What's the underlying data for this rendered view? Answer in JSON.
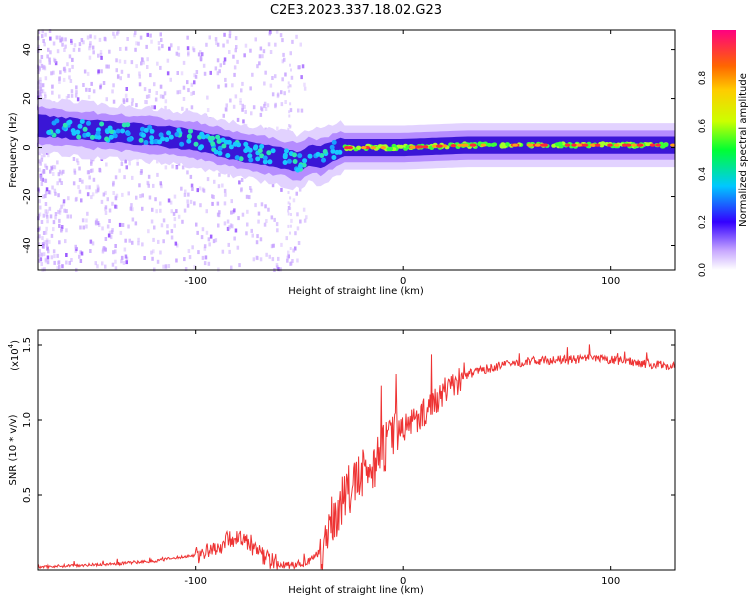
{
  "title": "C2E3.2023.337.18.02.G23",
  "chart_data": [
    {
      "type": "heatmap",
      "xlabel": "Height of straight line (km)",
      "ylabel": "Frequency (Hz)",
      "xlim": [
        -176,
        131
      ],
      "ylim": [
        -50,
        48
      ],
      "xticks": [
        -100,
        0,
        100
      ],
      "yticks": [
        -40,
        -20,
        0,
        20,
        40
      ],
      "grid": false,
      "ridge": {
        "x": [
          -176,
          -150,
          -120,
          -100,
          -80,
          -60,
          -50,
          -45,
          -40,
          -35,
          -30,
          0,
          30,
          60,
          90,
          131
        ],
        "frequency_hz": [
          9,
          7,
          5,
          3,
          -1,
          -4,
          -6,
          -3,
          -4,
          -2,
          0,
          0,
          1,
          1,
          1,
          1
        ]
      },
      "colorbar": {
        "label": "Normalized spectral amplitude",
        "range": [
          0.0,
          1.0
        ],
        "ticks": [
          "0.0",
          "0.2",
          "0.4",
          "0.6",
          "0.8"
        ]
      }
    },
    {
      "type": "line",
      "xlabel": "Height of straight line (km)",
      "ylabel": "SNR (10 * v/v)",
      "scale_label": "(x10",
      "scale_exponent": "4",
      "xlim": [
        -176,
        131
      ],
      "ylim": [
        0.0,
        1.6
      ],
      "xticks": [
        -100,
        0,
        100
      ],
      "yticks": [
        "0.5",
        "1.0",
        "1.5"
      ],
      "grid": false,
      "color": "#ee3333",
      "series": [
        {
          "x": [
            -176,
            -160,
            -140,
            -120,
            -100,
            -90,
            -85,
            -80,
            -75,
            -70,
            -65,
            -60,
            -55,
            -50,
            -45,
            -40,
            -35,
            -30,
            -25,
            -20,
            -15,
            -10,
            -5,
            0,
            5,
            10,
            15,
            20,
            25,
            30,
            40,
            50,
            60,
            70,
            80,
            90,
            100,
            110,
            120,
            131
          ],
          "values": [
            0.02,
            0.03,
            0.04,
            0.06,
            0.1,
            0.14,
            0.2,
            0.22,
            0.18,
            0.12,
            0.07,
            0.04,
            0.03,
            0.04,
            0.06,
            0.12,
            0.3,
            0.45,
            0.55,
            0.62,
            0.7,
            0.8,
            0.88,
            0.95,
            1.0,
            1.05,
            1.12,
            1.2,
            1.24,
            1.3,
            1.34,
            1.37,
            1.39,
            1.4,
            1.4,
            1.41,
            1.4,
            1.39,
            1.37,
            1.36
          ]
        }
      ]
    }
  ]
}
